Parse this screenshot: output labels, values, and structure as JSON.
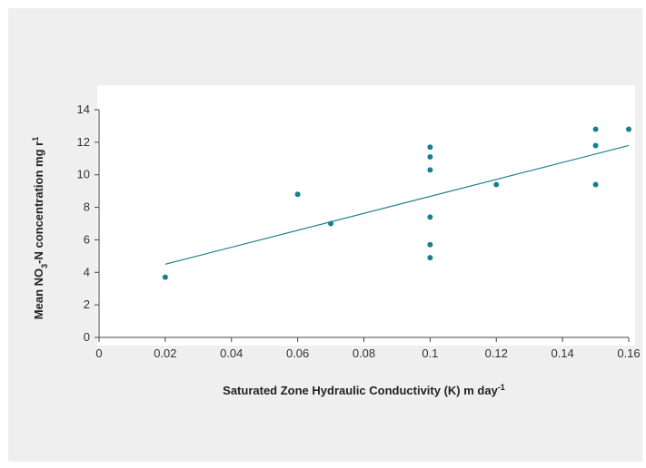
{
  "chart_data": {
    "type": "scatter",
    "title": "",
    "xlabel": "Saturated Zone Hydraulic Conductivity (K) m day",
    "xlabel_sup": "-1",
    "ylabel_parts": [
      "Mean NO",
      "3",
      "-N concentration mg r",
      "1"
    ],
    "xlim": [
      0,
      0.16
    ],
    "ylim": [
      0,
      14
    ],
    "x_ticks": [
      "0",
      "0.02",
      "0.04",
      "0.06",
      "0.08",
      "0.1",
      "0.12",
      "0.14",
      "0.16"
    ],
    "y_ticks": [
      "0",
      "2",
      "4",
      "6",
      "8",
      "10",
      "12",
      "14"
    ],
    "grid": false,
    "legend": "none",
    "colors": {
      "points": "#1a7f8c",
      "trendline": "#1a7f8c",
      "plot_bg": "#ffffff",
      "frame_bg": "#f0eff0"
    },
    "points": [
      {
        "x": 0.02,
        "y": 3.7
      },
      {
        "x": 0.06,
        "y": 8.8
      },
      {
        "x": 0.07,
        "y": 7.0
      },
      {
        "x": 0.1,
        "y": 11.7
      },
      {
        "x": 0.1,
        "y": 11.1
      },
      {
        "x": 0.1,
        "y": 10.3
      },
      {
        "x": 0.1,
        "y": 7.4
      },
      {
        "x": 0.1,
        "y": 5.7
      },
      {
        "x": 0.1,
        "y": 4.9
      },
      {
        "x": 0.12,
        "y": 9.4
      },
      {
        "x": 0.15,
        "y": 12.8
      },
      {
        "x": 0.15,
        "y": 11.8
      },
      {
        "x": 0.15,
        "y": 9.4
      },
      {
        "x": 0.16,
        "y": 12.8
      }
    ],
    "trendline": {
      "x": [
        0.02,
        0.16
      ],
      "y": [
        4.5,
        11.8
      ]
    }
  }
}
